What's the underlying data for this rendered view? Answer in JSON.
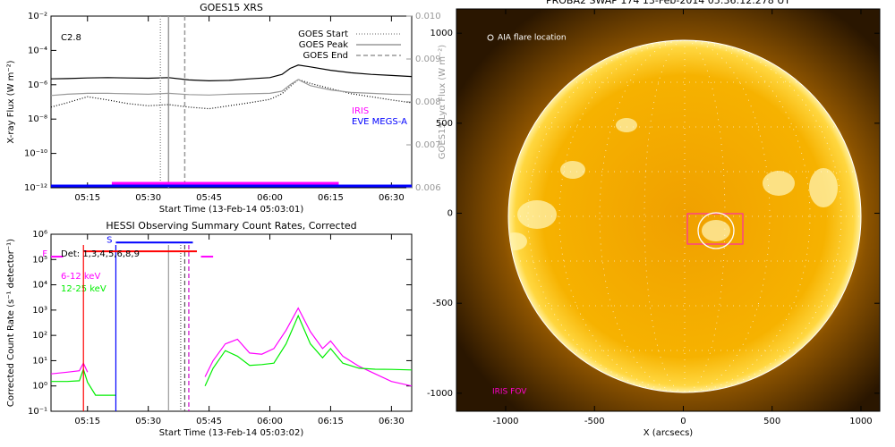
{
  "chart_data": [
    {
      "type": "line",
      "title": "GOES15 XRS",
      "xlabel": "Start Time (13-Feb-14 05:03:01)",
      "ylabel": "X-ray Flux (W m⁻²)",
      "y2label": "GOES15 Lyα Flux (W m⁻²)",
      "log_y": true,
      "xlim": [
        "05:06",
        "06:35"
      ],
      "xticks": [
        "05:15",
        "05:30",
        "05:45",
        "06:00",
        "06:15",
        "06:30"
      ],
      "ylim": [
        1e-12,
        0.01
      ],
      "yticks": [
        {
          "value": 1e-12,
          "label": "10⁻¹²"
        },
        {
          "value": 1e-10,
          "label": "10⁻¹⁰"
        },
        {
          "value": 1e-08,
          "label": "10⁻⁸"
        },
        {
          "value": 1e-06,
          "label": "10⁻⁶"
        },
        {
          "value": 0.0001,
          "label": "10⁻⁴"
        },
        {
          "value": 0.01,
          "label": "10⁻²"
        }
      ],
      "y2lim": [
        0.006,
        0.01
      ],
      "y2ticks": [
        0.006,
        0.007,
        0.008,
        0.009,
        {
          "value": 0.01,
          "label": "0.010"
        }
      ],
      "annotation": "C2.8",
      "x": [
        "05:06",
        "05:10",
        "05:15",
        "05:20",
        "05:25",
        "05:30",
        "05:35",
        "05:40",
        "05:45",
        "05:50",
        "05:55",
        "06:00",
        "06:03",
        "06:05",
        "06:07",
        "06:10",
        "06:15",
        "06:20",
        "06:25",
        "06:30",
        "06:35"
      ],
      "series": [
        {
          "color": "#000000",
          "style": "solid",
          "values": [
            2.2e-06,
            2.3e-06,
            2.5e-06,
            2.6e-06,
            2.5e-06,
            2.4e-06,
            2.6e-06,
            1.9e-06,
            1.7e-06,
            1.8e-06,
            2.2e-06,
            2.6e-06,
            4e-06,
            9e-06,
            1.4e-05,
            1.1e-05,
            7e-06,
            5e-06,
            4e-06,
            3.5e-06,
            3e-06
          ]
        },
        {
          "color": "#000000",
          "style": "dotted",
          "values": [
            5e-08,
            9e-08,
            2e-07,
            1.3e-07,
            8e-08,
            6e-08,
            7e-08,
            5e-08,
            4e-08,
            6e-08,
            9e-08,
            1.4e-07,
            3e-07,
            8e-07,
            2e-06,
            1.2e-06,
            6e-07,
            3e-07,
            2e-07,
            1.3e-07,
            9e-08
          ]
        },
        {
          "color": "#999999",
          "style": "solid",
          "axis": "y2",
          "values": [
            0.00815,
            0.00818,
            0.0082,
            0.0082,
            0.00819,
            0.00818,
            0.0082,
            0.00817,
            0.00816,
            0.00818,
            0.00819,
            0.0082,
            0.00825,
            0.0084,
            0.00852,
            0.00838,
            0.00828,
            0.00822,
            0.0082,
            0.00818,
            0.00817
          ]
        }
      ],
      "events": [
        {
          "name": "GOES Start",
          "x": "05:33",
          "style": "dotted"
        },
        {
          "name": "GOES Peak",
          "x": "05:35",
          "style": "solid"
        },
        {
          "name": "GOES End",
          "x": "05:39",
          "style": "dashed"
        }
      ],
      "coverage": [
        {
          "name": "IRIS",
          "color": "#ff00ff",
          "x": [
            "05:21",
            "06:17"
          ]
        },
        {
          "name": "EVE MEGS-A",
          "color": "#0000ff",
          "x": [
            "05:06",
            "06:35"
          ]
        }
      ]
    },
    {
      "type": "line",
      "title": "HESSI Observing Summary Count Rates, Corrected",
      "xlabel": "Start Time (13-Feb-14 05:03:02)",
      "ylabel": "Corrected Count Rate (s⁻¹ detector⁻¹)",
      "log_y": true,
      "xlim": [
        "05:06",
        "06:35"
      ],
      "xticks": [
        "05:15",
        "05:30",
        "05:45",
        "06:00",
        "06:15",
        "06:30"
      ],
      "ylim": [
        0.1,
        1000000
      ],
      "yticks": [
        {
          "value": 0.1,
          "label": "10⁻¹"
        },
        {
          "value": 1,
          "label": "10⁰"
        },
        {
          "value": 10,
          "label": "10¹"
        },
        {
          "value": 100,
          "label": "10²"
        },
        {
          "value": 1000,
          "label": "10³"
        },
        {
          "value": 10000,
          "label": "10⁴"
        },
        {
          "value": 100000,
          "label": "10⁵"
        },
        {
          "value": 1000000,
          "label": "10⁶"
        }
      ],
      "annotation": "Det: 1,3,4,5,6,8,9",
      "x": [
        "05:06",
        "05:10",
        "05:13",
        "05:14",
        "05:15",
        "05:17",
        "05:20",
        "05:22",
        "05:30",
        "05:44",
        "05:46",
        "05:49",
        "05:52",
        "05:55",
        "05:58",
        "06:01",
        "06:04",
        "06:07",
        "06:10",
        "06:13",
        "06:15",
        "06:18",
        "06:22",
        "06:26",
        "06:30",
        "06:35"
      ],
      "series": [
        {
          "name": "6-12 keV",
          "color": "#ff00ff",
          "style": "solid",
          "values": [
            3,
            3.5,
            4,
            8,
            3.5,
            null,
            null,
            null,
            null,
            2.3,
            10,
            46,
            70,
            20,
            18,
            30,
            160,
            1200,
            140,
            30,
            60,
            15,
            6,
            3,
            1.5,
            1
          ]
        },
        {
          "name": "12-25 keV",
          "color": "#00ee00",
          "style": "solid",
          "values": [
            1.5,
            1.5,
            1.6,
            4.6,
            1.4,
            0.43,
            0.43,
            0.43,
            null,
            1,
            5,
            25,
            15,
            6.5,
            7,
            8,
            46,
            600,
            46,
            13,
            30,
            8,
            5,
            4.6,
            4.5,
            4.3
          ]
        }
      ],
      "markers": [
        {
          "x": "05:14",
          "color": "#ff0000",
          "style": "solid"
        },
        {
          "x": "05:22",
          "color": "#0000ff",
          "style": "solid"
        },
        {
          "x": "05:35",
          "color": "#999999",
          "style": "solid"
        },
        {
          "x": "05:38",
          "color": "#555555",
          "style": "dotted"
        },
        {
          "x": "05:39",
          "color": "#555555",
          "style": "dashed"
        },
        {
          "x": "05:40",
          "color": "#cc00cc",
          "style": "dashed"
        }
      ],
      "bars": [
        {
          "x": [
            "05:22",
            "05:41"
          ],
          "y": 470000,
          "color": "#0000ff",
          "label": "S"
        },
        {
          "x": [
            "05:14",
            "05:42"
          ],
          "y": 210000,
          "color": "#ff0000"
        },
        {
          "x": [
            "05:06",
            "05:09"
          ],
          "y": 130000,
          "color": "#ff00ff",
          "label": "F"
        },
        {
          "x": [
            "05:43",
            "05:46"
          ],
          "y": 130000,
          "color": "#ff00ff"
        }
      ]
    },
    {
      "type": "image",
      "title": "PROBA2 SWAP 174 13-Feb-2014 05:36:12.278 UT",
      "xlabel": "X (arcsecs)",
      "xlim": [
        -1277,
        1106
      ],
      "ylim": [
        -1100,
        1135
      ],
      "xticks": [
        -1000,
        -500,
        0,
        500,
        1000
      ],
      "yticks": [
        -1000,
        -500,
        0,
        500,
        1000
      ],
      "annotations": [
        "AIA flare location",
        "IRIS FOV"
      ]
    }
  ]
}
